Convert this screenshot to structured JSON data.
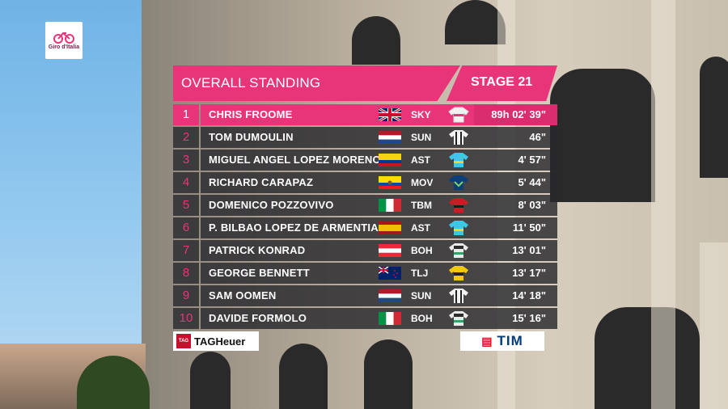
{
  "brand": {
    "logo_text": "Giro d'Italia"
  },
  "header": {
    "title": "OVERALL STANDING",
    "stage": "STAGE 21"
  },
  "colors": {
    "accent": "#e8357a",
    "row_bg": "#2b2b30"
  },
  "rows": [
    {
      "rank": "1",
      "name": "CHRIS FROOME",
      "flag": "gb-flag",
      "team": "SKY",
      "jersey": "sky-jersey",
      "time": "89h 02' 39\""
    },
    {
      "rank": "2",
      "name": "TOM DUMOULIN",
      "flag": "nl-flag",
      "team": "SUN",
      "jersey": "sunweb-jersey",
      "time": "46\""
    },
    {
      "rank": "3",
      "name": "MIGUEL ANGEL LOPEZ MORENO",
      "flag": "co-flag",
      "team": "AST",
      "jersey": "astana-jersey",
      "time": "4' 57\""
    },
    {
      "rank": "4",
      "name": "RICHARD CARAPAZ",
      "flag": "ec-flag",
      "team": "MOV",
      "jersey": "movistar-jersey",
      "time": "5' 44\""
    },
    {
      "rank": "5",
      "name": "DOMENICO POZZOVIVO",
      "flag": "it-flag",
      "team": "TBM",
      "jersey": "bahrain-jersey",
      "time": "8' 03\""
    },
    {
      "rank": "6",
      "name": "P. BILBAO LOPEZ DE ARMENTIA",
      "flag": "es-flag",
      "team": "AST",
      "jersey": "astana-jersey",
      "time": "11' 50\""
    },
    {
      "rank": "7",
      "name": "PATRICK KONRAD",
      "flag": "at-flag",
      "team": "BOH",
      "jersey": "bora-jersey",
      "time": "13' 01\""
    },
    {
      "rank": "8",
      "name": "GEORGE BENNETT",
      "flag": "nz-flag",
      "team": "TLJ",
      "jersey": "lottonl-jersey",
      "time": "13' 17\""
    },
    {
      "rank": "9",
      "name": "SAM OOMEN",
      "flag": "nl-flag",
      "team": "SUN",
      "jersey": "sunweb-jersey",
      "time": "14' 18\""
    },
    {
      "rank": "10",
      "name": "DAVIDE FORMOLO",
      "flag": "it-flag",
      "team": "BOH",
      "jersey": "bora-jersey",
      "time": "15' 16\""
    }
  ],
  "sponsors": {
    "left_badge": "TAG",
    "left": "TAGHeuer",
    "right": "TIM"
  }
}
